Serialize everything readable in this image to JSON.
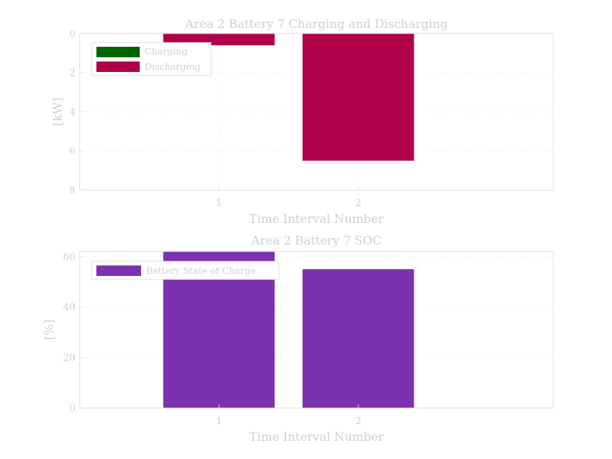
{
  "chart_data": [
    {
      "type": "bar",
      "title": "Area 2 Battery 7 Charging and Discharging",
      "xlabel": "Time Interval Number",
      "ylabel": "[kW]",
      "categories": [
        "1",
        "2"
      ],
      "x_ticks": [
        "1",
        "2"
      ],
      "xlim": [
        0,
        3.4
      ],
      "ylim": [
        0,
        8
      ],
      "y_inverted": true,
      "y_ticks": [
        "0",
        "2",
        "4",
        "6",
        "8"
      ],
      "grid": true,
      "legend_position": "top-left",
      "series": [
        {
          "name": "Charging",
          "color": "#006400",
          "values": [
            0,
            0
          ]
        },
        {
          "name": "Discharging",
          "color": "#b0004a",
          "values": [
            0.6,
            6.5
          ]
        }
      ]
    },
    {
      "type": "bar",
      "title": "Area 2 Battery 7 SOC",
      "xlabel": "Time Interval Number",
      "ylabel": "[%]",
      "categories": [
        "1",
        "2"
      ],
      "x_ticks": [
        "1",
        "2"
      ],
      "xlim": [
        0,
        3.4
      ],
      "ylim": [
        0,
        62
      ],
      "y_ticks": [
        "0",
        "20",
        "40",
        "60"
      ],
      "grid": true,
      "legend_position": "top-left",
      "series": [
        {
          "name": "Battery State of Charge",
          "color": "#7b31b0",
          "values": [
            62,
            55
          ]
        }
      ]
    }
  ]
}
